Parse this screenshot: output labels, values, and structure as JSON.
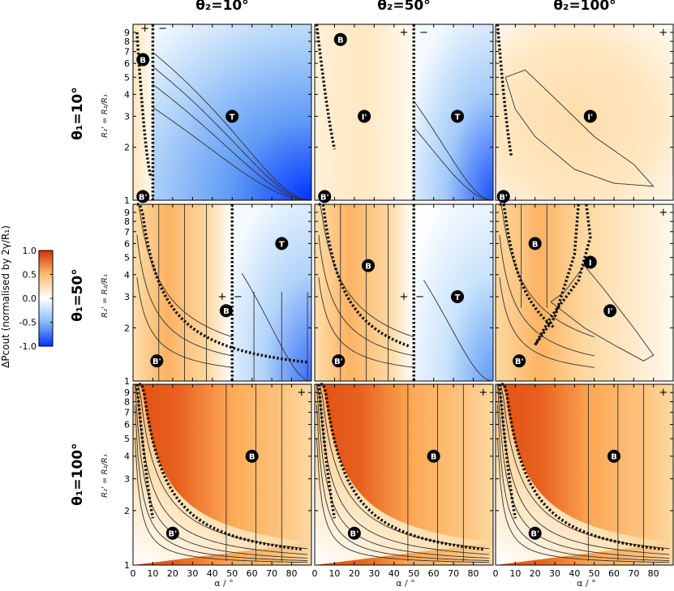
{
  "col_titles": [
    "θ₂=10°",
    "θ₂=50°",
    "θ₂=100°"
  ],
  "row_titles": [
    "θ₁=10°",
    "θ₁=50°",
    "θ₁=100°"
  ],
  "ylabel": "R₂' = R₂/R₁",
  "xlabel": "α / °",
  "colorbar": {
    "label": "ΔPcout (normalised by 2γ/R₁)",
    "ticks": [
      "1.0",
      "0.5",
      "0.0",
      "-0.5",
      "-1.0"
    ],
    "colors": {
      "max": "#d73000",
      "mid": "#ffffff",
      "min": "#0033ff"
    }
  },
  "chart_data": [
    {
      "type": "heatmap",
      "row": 0,
      "col": 0,
      "x_range": [
        0,
        90
      ],
      "y_range": [
        1,
        10
      ],
      "y_scale": "log",
      "regions": [
        {
          "label": "B",
          "sign": "+",
          "x": [
            0,
            10
          ]
        },
        {
          "label": "T",
          "sign": "−",
          "x": [
            10,
            90
          ]
        }
      ],
      "markers": [
        {
          "label": "B",
          "alpha": 5,
          "r": 6.3
        },
        {
          "label": "B'",
          "alpha": 5,
          "r": 1.05
        },
        {
          "label": "T",
          "alpha": 50,
          "r": 3.0
        }
      ],
      "signs": [
        {
          "text": "+",
          "alpha": 6,
          "r": 9.5
        },
        {
          "text": "−",
          "alpha": 15,
          "r": 9.5
        }
      ]
    },
    {
      "type": "heatmap",
      "row": 0,
      "col": 1,
      "x_range": [
        0,
        90
      ],
      "y_range": [
        1,
        10
      ],
      "y_scale": "log",
      "regions": [
        {
          "label": "I'",
          "sign": "+",
          "x": [
            0,
            50
          ]
        },
        {
          "label": "T",
          "sign": "−",
          "x": [
            50,
            90
          ]
        }
      ],
      "markers": [
        {
          "label": "B",
          "alpha": 13,
          "r": 8.2
        },
        {
          "label": "B'",
          "alpha": 5,
          "r": 1.05
        },
        {
          "label": "I'",
          "alpha": 25,
          "r": 3.0
        },
        {
          "label": "T",
          "alpha": 72,
          "r": 3.0
        }
      ],
      "signs": [
        {
          "text": "+",
          "alpha": 45,
          "r": 9.0
        },
        {
          "text": "−",
          "alpha": 55,
          "r": 9.0
        }
      ]
    },
    {
      "type": "heatmap",
      "row": 0,
      "col": 2,
      "x_range": [
        0,
        90
      ],
      "y_range": [
        1,
        10
      ],
      "y_scale": "log",
      "markers": [
        {
          "label": "B'",
          "alpha": 4,
          "r": 1.05
        },
        {
          "label": "I'",
          "alpha": 48,
          "r": 3.0
        }
      ],
      "signs": [
        {
          "text": "+",
          "alpha": 85,
          "r": 9.0
        }
      ]
    },
    {
      "type": "heatmap",
      "row": 1,
      "col": 0,
      "x_range": [
        0,
        90
      ],
      "y_range": [
        1,
        10
      ],
      "y_scale": "log",
      "regions": [
        {
          "label": "B",
          "sign": "+",
          "x": [
            0,
            50
          ]
        },
        {
          "label": "T",
          "sign": "−",
          "x": [
            50,
            90
          ]
        }
      ],
      "markers": [
        {
          "label": "B",
          "alpha": 47,
          "r": 2.5
        },
        {
          "label": "B'",
          "alpha": 12,
          "r": 1.3
        },
        {
          "label": "T",
          "alpha": 75,
          "r": 6.0
        }
      ],
      "signs": [
        {
          "text": "+",
          "alpha": 45,
          "r": 3.0
        },
        {
          "text": "−",
          "alpha": 53,
          "r": 3.0
        }
      ]
    },
    {
      "type": "heatmap",
      "row": 1,
      "col": 1,
      "x_range": [
        0,
        90
      ],
      "y_range": [
        1,
        10
      ],
      "y_scale": "log",
      "regions": [
        {
          "label": "B",
          "sign": "+",
          "x": [
            0,
            50
          ]
        },
        {
          "label": "T",
          "sign": "−",
          "x": [
            50,
            90
          ]
        }
      ],
      "markers": [
        {
          "label": "B",
          "alpha": 27,
          "r": 4.5
        },
        {
          "label": "B'",
          "alpha": 12,
          "r": 1.3
        },
        {
          "label": "T",
          "alpha": 72,
          "r": 3.0
        }
      ],
      "signs": [
        {
          "text": "+",
          "alpha": 45,
          "r": 3.0
        },
        {
          "text": "−",
          "alpha": 53,
          "r": 3.0
        }
      ]
    },
    {
      "type": "heatmap",
      "row": 1,
      "col": 2,
      "x_range": [
        0,
        90
      ],
      "y_range": [
        1,
        10
      ],
      "y_scale": "log",
      "markers": [
        {
          "label": "B",
          "alpha": 20,
          "r": 6.0
        },
        {
          "label": "I",
          "alpha": 48,
          "r": 4.7
        },
        {
          "label": "I'",
          "alpha": 58,
          "r": 2.5
        },
        {
          "label": "B'",
          "alpha": 12,
          "r": 1.3
        }
      ],
      "signs": [
        {
          "text": "+",
          "alpha": 85,
          "r": 9.0
        }
      ]
    },
    {
      "type": "heatmap",
      "row": 2,
      "col": 0,
      "x_range": [
        0,
        90
      ],
      "y_range": [
        1,
        10
      ],
      "y_scale": "log",
      "markers": [
        {
          "label": "B",
          "alpha": 60,
          "r": 4.0
        },
        {
          "label": "B'",
          "alpha": 20,
          "r": 1.5
        }
      ],
      "signs": [
        {
          "text": "+",
          "alpha": 85,
          "r": 9.0
        }
      ]
    },
    {
      "type": "heatmap",
      "row": 2,
      "col": 1,
      "x_range": [
        0,
        90
      ],
      "y_range": [
        1,
        10
      ],
      "y_scale": "log",
      "markers": [
        {
          "label": "B",
          "alpha": 60,
          "r": 4.0
        },
        {
          "label": "B'",
          "alpha": 20,
          "r": 1.5
        }
      ],
      "signs": [
        {
          "text": "+",
          "alpha": 85,
          "r": 9.0
        }
      ]
    },
    {
      "type": "heatmap",
      "row": 2,
      "col": 2,
      "x_range": [
        0,
        90
      ],
      "y_range": [
        1,
        10
      ],
      "y_scale": "log",
      "markers": [
        {
          "label": "B",
          "alpha": 60,
          "r": 4.0
        },
        {
          "label": "B'",
          "alpha": 20,
          "r": 1.5
        }
      ],
      "signs": [
        {
          "text": "+",
          "alpha": 85,
          "r": 9.0
        }
      ]
    }
  ],
  "x_ticks": [
    "0",
    "10",
    "20",
    "30",
    "40",
    "50",
    "60",
    "70",
    "80"
  ],
  "y_ticks": [
    "1",
    "2",
    "3",
    "4",
    "5",
    "6",
    "7",
    "8",
    "9"
  ]
}
